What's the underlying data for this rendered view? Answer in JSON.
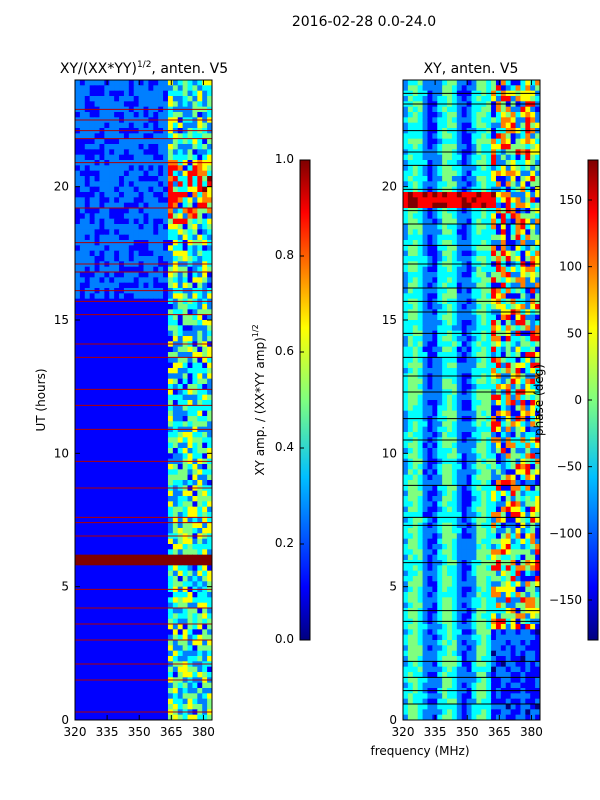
{
  "figure_title": "2016-02-28 0.0-24.0",
  "colors": {
    "jet": [
      "#00007f",
      "#0000ff",
      "#007fff",
      "#00ffff",
      "#7fff7f",
      "#ffff00",
      "#ff7f00",
      "#ff0000",
      "#7f0000"
    ],
    "background": "#ffffff",
    "axis": "#000000"
  },
  "chart_data": [
    {
      "type": "heatmap",
      "title": "XY/(XX*YY)^{1/2}, anten. V5",
      "title_main": "XY/(XX*YY)",
      "title_exp": "1/2",
      "title_tail": ", anten. V5",
      "xlabel": "",
      "ylabel": "UT (hours)",
      "xlim": [
        320,
        384
      ],
      "ylim": [
        0,
        24
      ],
      "xticks": [
        320,
        335,
        350,
        365,
        380
      ],
      "yticks": [
        0,
        5,
        10,
        15,
        20
      ],
      "colorbar": {
        "label": "XY amp. / (XX*YY amp)^{1/2}",
        "label_main": "XY amp. / (XX*YY amp)",
        "label_exp": "1/2",
        "range": [
          0,
          1.0
        ],
        "ticks": [
          "0.0",
          "0.2",
          "0.4",
          "0.6",
          "0.8",
          "1.0"
        ]
      },
      "features": {
        "bright_band_start_mhz": 363,
        "saturated_band_hours": [
          5.75,
          6.25
        ],
        "flag_lines_hours": [
          0.3,
          1.5,
          2.1,
          3.0,
          3.6,
          4.2,
          4.9,
          6.9,
          7.4,
          7.6,
          8.7,
          9.7,
          10.9,
          11.8,
          12.4,
          13.6,
          14.1,
          15.2,
          15.7,
          16.1,
          16.8,
          17.1,
          17.9,
          19.2,
          20.9,
          21.8,
          22.1,
          22.5,
          22.9
        ]
      }
    },
    {
      "type": "heatmap",
      "title": "XY, anten. V5",
      "xlabel": "frequency (MHz)",
      "ylabel": "",
      "xlim": [
        320,
        384
      ],
      "ylim": [
        0,
        24
      ],
      "xticks": [
        320,
        335,
        350,
        365,
        380
      ],
      "yticks": [
        0,
        5,
        10,
        15,
        20
      ],
      "colorbar": {
        "label": "phase (deg)",
        "range": [
          -180,
          180
        ],
        "ticks": [
          "−150",
          "−100",
          "−50",
          "0",
          "50",
          "100",
          "150"
        ],
        "tick_values": [
          -150,
          -100,
          -50,
          0,
          50,
          100,
          150
        ]
      },
      "features": {
        "red_band_hours": [
          19.2,
          19.7
        ],
        "flag_lines_hours": [
          0.6,
          1.1,
          1.6,
          2.2,
          3.7,
          4.1,
          5.9,
          7.3,
          7.6,
          8.8,
          9.7,
          10.5,
          11.3,
          12.3,
          12.9,
          13.6,
          14.5,
          15.3,
          15.7,
          16.2,
          17.1,
          17.8,
          18.6,
          19.1,
          19.9,
          20.8,
          21.3,
          22.1,
          23.1,
          23.5
        ]
      }
    }
  ]
}
